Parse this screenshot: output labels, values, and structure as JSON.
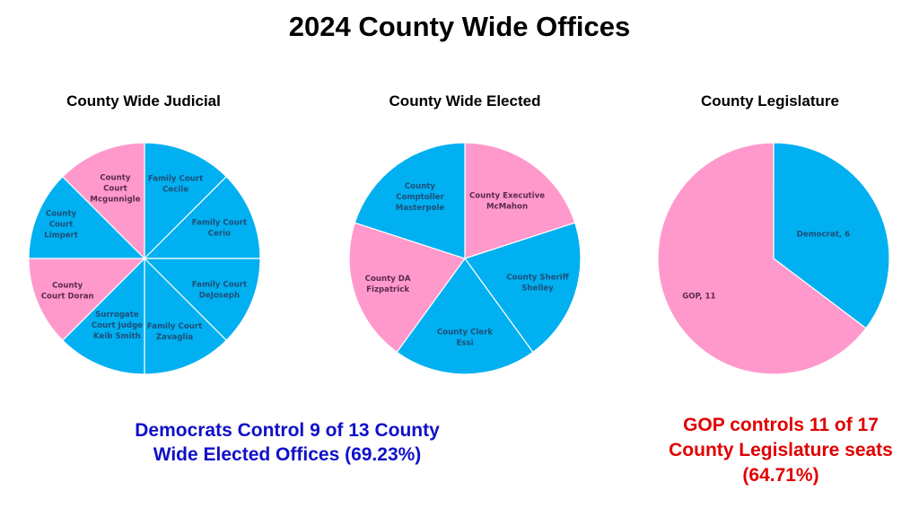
{
  "page": {
    "title": "2024 County Wide Offices"
  },
  "colors": {
    "democrat": "#00b0f0",
    "gop": "#ff99cc",
    "dem_label": "#1f4e79",
    "gop_label": "#5b2a4e",
    "summary_dem": "#1010c8",
    "summary_gop": "#e00000"
  },
  "chart_data": [
    {
      "type": "pie",
      "title": "County Wide Judicial",
      "slices": [
        {
          "label": [
            "Family Court",
            "Cecile"
          ],
          "value": 1,
          "party": "democrat"
        },
        {
          "label": [
            "Family Court",
            "Cerio"
          ],
          "value": 1,
          "party": "democrat"
        },
        {
          "label": [
            "Family Court",
            "DeJoseph"
          ],
          "value": 1,
          "party": "democrat"
        },
        {
          "label": [
            "Family Court",
            "Zavaglia"
          ],
          "value": 1,
          "party": "democrat"
        },
        {
          "label": [
            "Surrogate",
            "Court Judge",
            "Keib Smith"
          ],
          "value": 1,
          "party": "democrat"
        },
        {
          "label": [
            "County",
            "Court Doran"
          ],
          "value": 1,
          "party": "gop"
        },
        {
          "label": [
            "County",
            "Court",
            "Limpert"
          ],
          "value": 1,
          "party": "democrat"
        },
        {
          "label": [
            "County",
            "Court",
            "Mcgunnigle"
          ],
          "value": 1,
          "party": "gop"
        }
      ]
    },
    {
      "type": "pie",
      "title": "County Wide Elected",
      "slices": [
        {
          "label": [
            "County Executive",
            "McMahon"
          ],
          "value": 1,
          "party": "gop"
        },
        {
          "label": [
            "County Sheriff",
            "Shelley"
          ],
          "value": 1,
          "party": "democrat"
        },
        {
          "label": [
            "County Clerk",
            "Essi"
          ],
          "value": 1,
          "party": "democrat"
        },
        {
          "label": [
            "County DA",
            "Fizpatrick"
          ],
          "value": 1,
          "party": "gop"
        },
        {
          "label": [
            "County",
            "Comptoller",
            "Masterpole"
          ],
          "value": 1,
          "party": "democrat"
        }
      ]
    },
    {
      "type": "pie",
      "title": "County Legislature",
      "slices": [
        {
          "label": [
            "Democrat, 6"
          ],
          "value": 6,
          "party": "democrat"
        },
        {
          "label": [
            "GOP, 11"
          ],
          "value": 11,
          "party": "gop"
        }
      ]
    }
  ],
  "summaries": {
    "dem": [
      "Democrats Control 9 of 13 County",
      "Wide Elected Offices (69.23%)"
    ],
    "gop": [
      "GOP controls 11 of 17",
      "County Legislature seats",
      "(64.71%)"
    ]
  }
}
